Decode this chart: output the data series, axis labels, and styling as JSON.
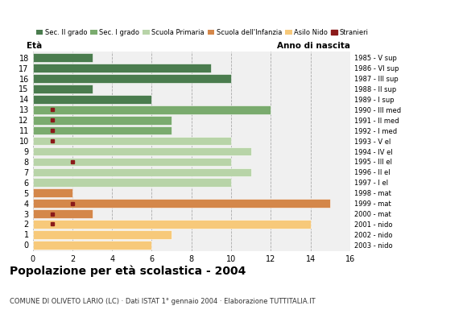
{
  "ages": [
    18,
    17,
    16,
    15,
    14,
    13,
    12,
    11,
    10,
    9,
    8,
    7,
    6,
    5,
    4,
    3,
    2,
    1,
    0
  ],
  "years": [
    "1985 - V sup",
    "1986 - VI sup",
    "1987 - III sup",
    "1988 - II sup",
    "1989 - I sup",
    "1990 - III med",
    "1991 - II med",
    "1992 - I med",
    "1993 - V el",
    "1994 - IV el",
    "1995 - III el",
    "1996 - II el",
    "1997 - I el",
    "1998 - mat",
    "1999 - mat",
    "2000 - mat",
    "2001 - nido",
    "2002 - nido",
    "2003 - nido"
  ],
  "bar_values": [
    3,
    9,
    10,
    3,
    6,
    12,
    7,
    7,
    10,
    11,
    10,
    11,
    10,
    2,
    15,
    3,
    14,
    7,
    6
  ],
  "stranieri_values": [
    0,
    0,
    0,
    0,
    0,
    1,
    1,
    1,
    1,
    0,
    2,
    0,
    0,
    0,
    2,
    1,
    1,
    0,
    0
  ],
  "categories": {
    "Sec. II grado": {
      "ages": [
        14,
        15,
        16,
        17,
        18
      ],
      "color": "#4a7c4e"
    },
    "Sec. I grado": {
      "ages": [
        11,
        12,
        13
      ],
      "color": "#7aab6e"
    },
    "Scuola Primaria": {
      "ages": [
        6,
        7,
        8,
        9,
        10
      ],
      "color": "#b8d4a8"
    },
    "Scuola dell'Infanzia": {
      "ages": [
        3,
        4,
        5
      ],
      "color": "#d4874a"
    },
    "Asilo Nido": {
      "ages": [
        0,
        1,
        2
      ],
      "color": "#f7c97a"
    }
  },
  "stranieri_color": "#8b1a1a",
  "title": "Popolazione per età scolastica - 2004",
  "subtitle": "COMUNE DI OLIVETO LARIO (LC) · Dati ISTAT 1° gennaio 2004 · Elaborazione TUTTITALIA.IT",
  "xlabel_left": "Età",
  "xlabel_right": "Anno di nascita",
  "xlim": [
    0,
    16
  ],
  "xticks": [
    0,
    2,
    4,
    6,
    8,
    10,
    12,
    14,
    16
  ],
  "legend_order": [
    "Sec. II grado",
    "Sec. I grado",
    "Scuola Primaria",
    "Scuola dell'Infanzia",
    "Asilo Nido",
    "Stranieri"
  ],
  "legend_colors": [
    "#4a7c4e",
    "#7aab6e",
    "#b8d4a8",
    "#d4874a",
    "#f7c97a",
    "#8b1a1a"
  ],
  "bg_color": "#ffffff",
  "plot_bg": "#f0f0f0"
}
